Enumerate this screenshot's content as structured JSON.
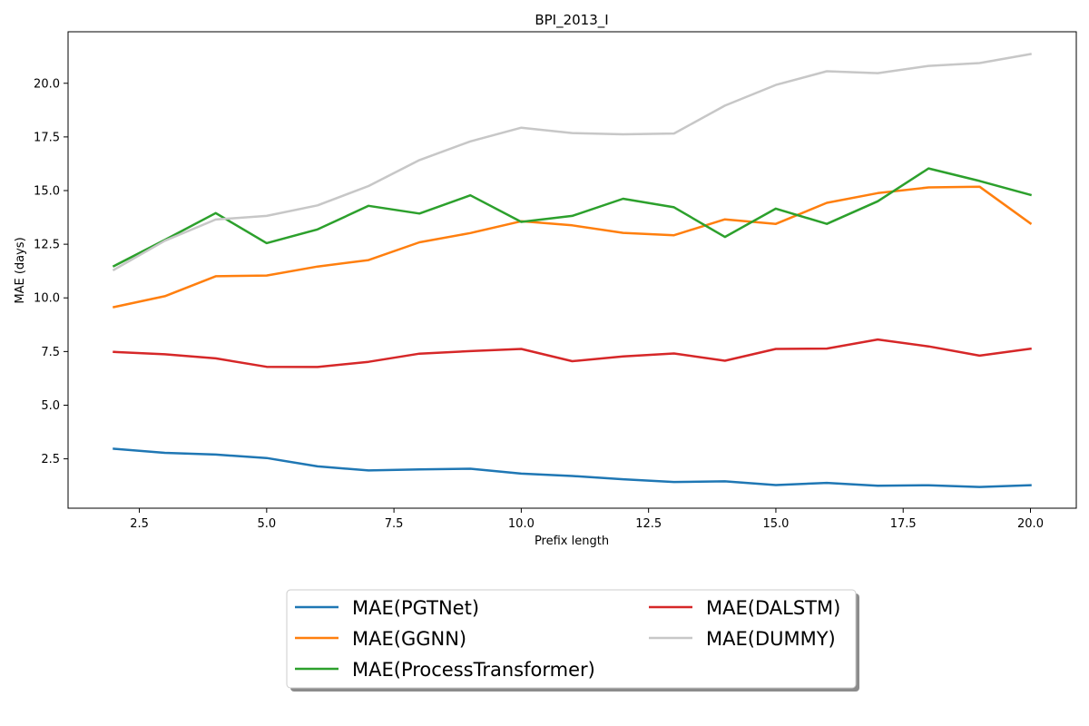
{
  "chart_data": {
    "type": "line",
    "title": "BPI_2013_I",
    "xlabel": "Prefix length",
    "ylabel": "MAE (days)",
    "xlim": [
      1.1,
      20.9
    ],
    "ylim": [
      0.2,
      22.4
    ],
    "x_ticks": [
      2.5,
      5.0,
      7.5,
      10.0,
      12.5,
      15.0,
      17.5,
      20.0
    ],
    "y_ticks": [
      2.5,
      5.0,
      7.5,
      10.0,
      12.5,
      15.0,
      17.5,
      20.0
    ],
    "grid": false,
    "legend_position": "below-center",
    "x": [
      2,
      3,
      4,
      5,
      6,
      7,
      8,
      9,
      10,
      11,
      12,
      13,
      14,
      15,
      16,
      17,
      18,
      19,
      20
    ],
    "series": [
      {
        "name": "MAE(PGTNet)",
        "color": "#1f77b4",
        "values": [
          2.97,
          2.78,
          2.7,
          2.54,
          2.15,
          1.96,
          2.01,
          2.04,
          1.81,
          1.7,
          1.55,
          1.42,
          1.45,
          1.28,
          1.38,
          1.25,
          1.27,
          1.19,
          1.27
        ]
      },
      {
        "name": "MAE(GGNN)",
        "color": "#ff7f0e",
        "values": [
          9.57,
          10.08,
          11.01,
          11.04,
          11.46,
          11.76,
          12.59,
          13.02,
          13.57,
          13.38,
          13.03,
          12.92,
          13.66,
          13.45,
          14.43,
          14.88,
          15.15,
          15.18,
          13.47
        ]
      },
      {
        "name": "MAE(ProcessTransformer)",
        "color": "#2ca02c",
        "values": [
          11.48,
          12.7,
          13.95,
          12.55,
          13.19,
          14.29,
          13.93,
          14.78,
          13.54,
          13.82,
          14.62,
          14.22,
          12.84,
          14.16,
          13.45,
          14.5,
          16.03,
          15.45,
          14.8
        ]
      },
      {
        "name": "MAE(DALSTM)",
        "color": "#d62728",
        "values": [
          7.48,
          7.37,
          7.18,
          6.79,
          6.78,
          7.02,
          7.4,
          7.52,
          7.62,
          7.05,
          7.27,
          7.41,
          7.07,
          7.62,
          7.64,
          8.06,
          7.74,
          7.31,
          7.63
        ]
      },
      {
        "name": "MAE(DUMMY)",
        "color": "#c7c7c7",
        "values": [
          11.31,
          12.66,
          13.65,
          13.82,
          14.31,
          15.21,
          16.42,
          17.29,
          17.93,
          17.68,
          17.62,
          17.66,
          18.96,
          19.92,
          20.56,
          20.47,
          20.81,
          20.94,
          21.36
        ]
      }
    ]
  }
}
